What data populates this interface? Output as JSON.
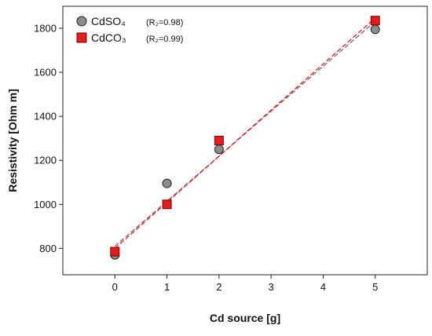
{
  "chart_data": {
    "type": "scatter",
    "title": "",
    "xlabel": "Cd source [g]",
    "ylabel": "Resistivity [Ohm m]",
    "x_ticks": [
      "0",
      "1",
      "2",
      "3",
      "4",
      "5"
    ],
    "y_ticks": [
      "800",
      "1000",
      "1200",
      "1400",
      "1600",
      "1800"
    ],
    "xlim": [
      -1,
      6
    ],
    "ylim": [
      680,
      1900
    ],
    "grid": false,
    "legend_position": "top-left",
    "series": [
      {
        "name": "CdSO₄",
        "r2_label": "(R₂=0.98)",
        "marker": "circle",
        "color": "#8c8c8c",
        "trend_color": "#6e6e6e",
        "x": [
          0,
          1,
          2,
          5
        ],
        "y": [
          770,
          1095,
          1250,
          1795
        ],
        "err": [
          12,
          12,
          12,
          12
        ],
        "trend": {
          "x": [
            0,
            5
          ],
          "y": [
            810,
            1835
          ]
        }
      },
      {
        "name": "CdCO₃",
        "r2_label": "(R₂=0.99)",
        "marker": "square",
        "color": "#e11d1d",
        "trend_color": "#e11d1d",
        "x": [
          0,
          1,
          2,
          5
        ],
        "y": [
          785,
          1000,
          1290,
          1835
        ],
        "err": [
          15,
          15,
          15,
          15
        ],
        "trend": {
          "x": [
            0,
            5
          ],
          "y": [
            800,
            1850
          ]
        }
      }
    ]
  }
}
